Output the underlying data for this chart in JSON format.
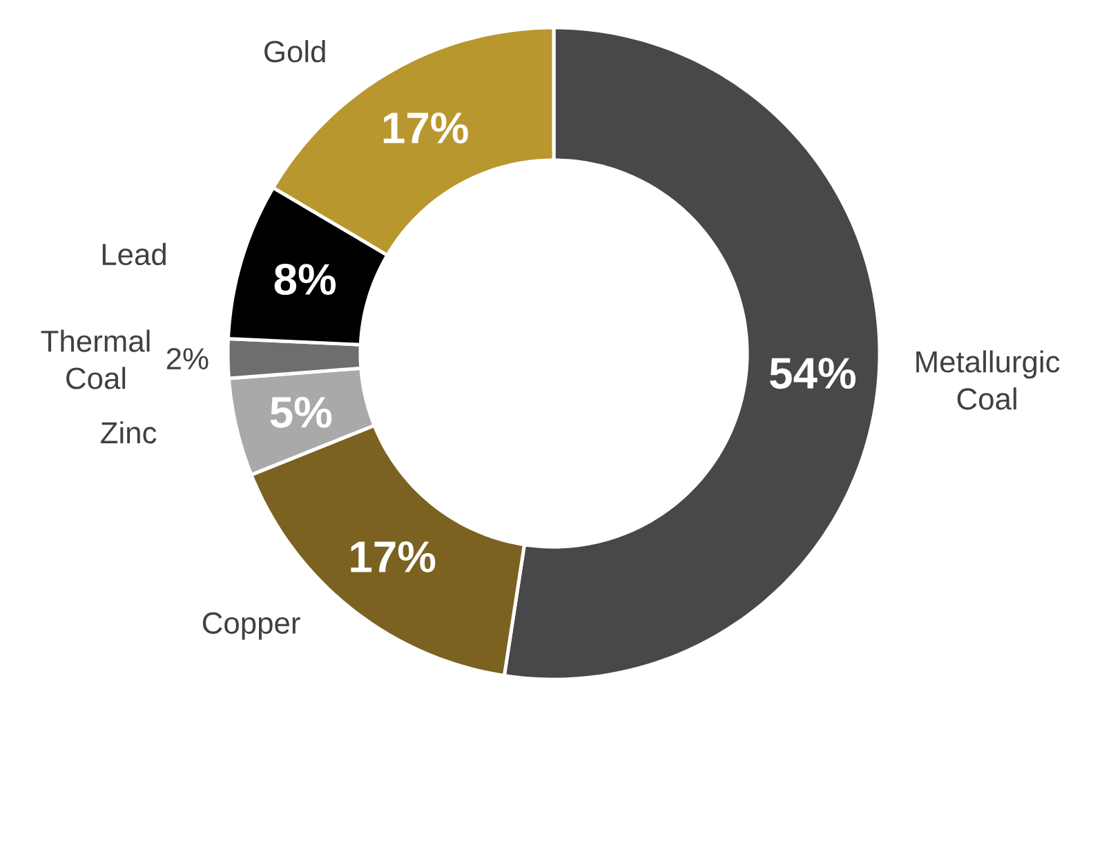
{
  "chart_data": {
    "type": "donut",
    "categories": [
      "Metallurgic Coal",
      "Copper",
      "Zinc",
      "Thermal Coal",
      "Lead",
      "Gold"
    ],
    "values": [
      54,
      17,
      5,
      2,
      8,
      17
    ],
    "colors": [
      "#48484a",
      "#7b6220",
      "#a9a9aa",
      "#6e6e70",
      "#000000",
      "#b9972f"
    ],
    "value_labels": [
      "54%",
      "17%",
      "5%",
      "2%",
      "8%",
      "17%"
    ]
  }
}
